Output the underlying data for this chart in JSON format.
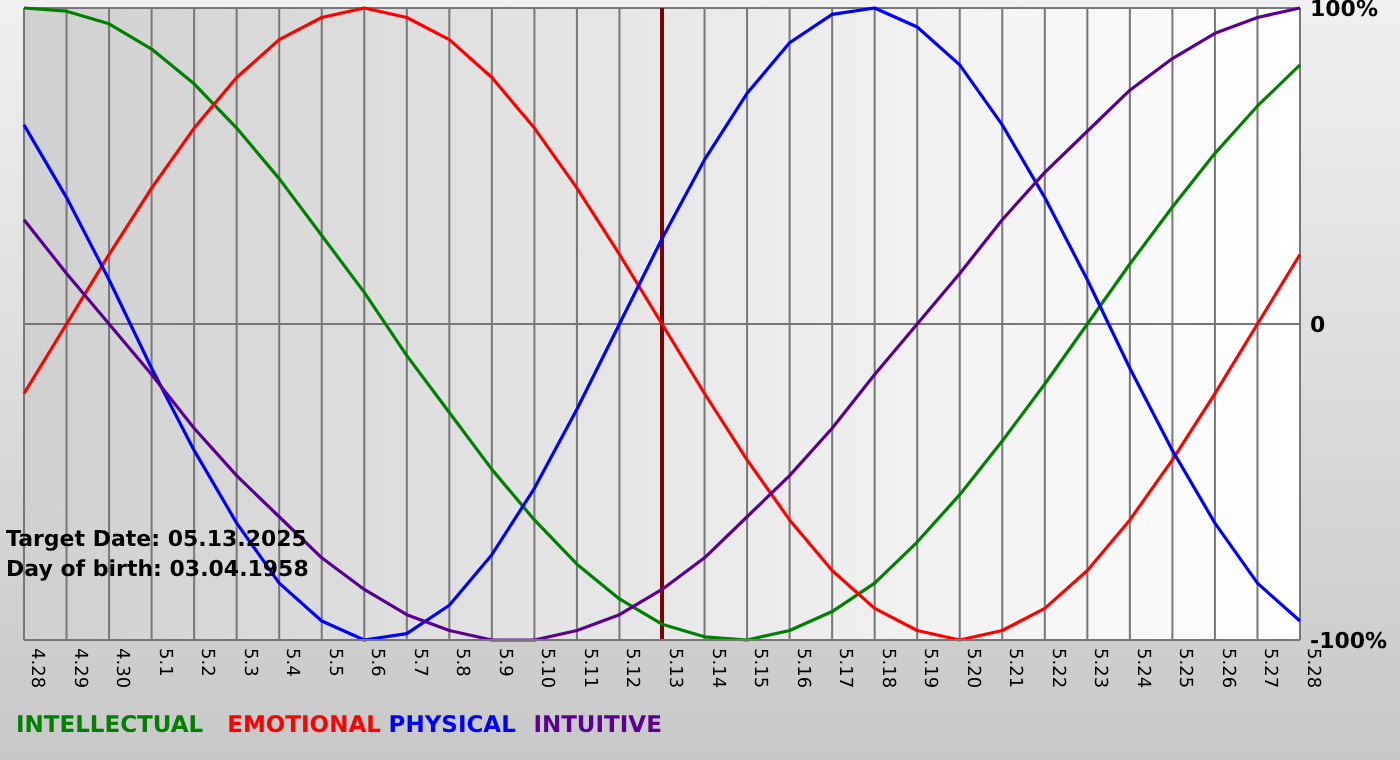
{
  "chart_data": {
    "type": "line",
    "categories": [
      "4.28",
      "4.29",
      "4.30",
      "5.1",
      "5.2",
      "5.3",
      "5.4",
      "5.5",
      "5.6",
      "5.7",
      "5.8",
      "5.9",
      "5.10",
      "5.11",
      "5.12",
      "5.13",
      "5.14",
      "5.15",
      "5.16",
      "5.17",
      "5.18",
      "5.19",
      "5.20",
      "5.21",
      "5.22",
      "5.23",
      "5.24",
      "5.25",
      "5.26",
      "5.27",
      "5.28"
    ],
    "series": [
      {
        "name": "INTELLECTUAL",
        "color": "#008000",
        "values": [
          100,
          99,
          95,
          87,
          76,
          62,
          46,
          28,
          10,
          -10,
          -28,
          -46,
          -62,
          -76,
          -87,
          -95,
          -99,
          -100,
          -97,
          -91,
          -82,
          -69,
          -54,
          -37,
          -19,
          0,
          19,
          37,
          54,
          69,
          82
        ]
      },
      {
        "name": "EMOTIONAL",
        "color": "#ff0000",
        "values": [
          -22,
          0,
          22,
          43,
          62,
          78,
          90,
          97,
          100,
          97,
          90,
          78,
          62,
          43,
          22,
          0,
          -22,
          -43,
          -62,
          -78,
          -90,
          -97,
          -100,
          -97,
          -90,
          -78,
          -62,
          -43,
          -22,
          0,
          22
        ]
      },
      {
        "name": "PHYSICAL",
        "color": "#0000ff",
        "values": [
          63,
          40,
          14,
          -14,
          -40,
          -63,
          -82,
          -94,
          -100,
          -98,
          -89,
          -73,
          -52,
          -27,
          0,
          27,
          52,
          73,
          89,
          98,
          100,
          94,
          82,
          63,
          40,
          14,
          -14,
          -40,
          -63,
          -82,
          -94
        ]
      },
      {
        "name": "INTUITIVE",
        "color": "#5a0090",
        "values": [
          33,
          16,
          0,
          -16,
          -33,
          -48,
          -61,
          -74,
          -84,
          -92,
          -97,
          -100,
          -100,
          -97,
          -92,
          -84,
          -74,
          -61,
          -48,
          -33,
          -16,
          0,
          16,
          33,
          48,
          61,
          74,
          84,
          92,
          97,
          100
        ]
      }
    ],
    "ylim": [
      -100,
      100
    ],
    "yticks": [
      {
        "value": 100,
        "label": "100%"
      },
      0,
      {
        "value": -100,
        "label": "-100%"
      }
    ],
    "grid": true,
    "legend": "bottom",
    "marker": "none",
    "line_style": "solid",
    "ref_lines": [
      {
        "axis": "x",
        "value": "5.13",
        "color": "#800000"
      }
    ],
    "annotations": [
      "Target Date: 05.13.2025",
      "Day of birth: 03.04.1958"
    ]
  }
}
